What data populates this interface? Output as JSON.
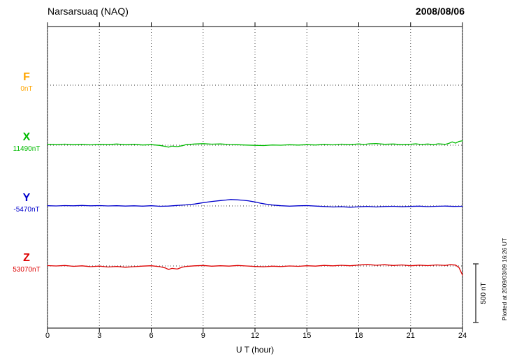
{
  "header": {
    "station": "Narsarsuaq (NAQ)",
    "date": "2008/08/06"
  },
  "footer": {
    "plotted_note": "Plotted at 2009/03/09 16:26 UT"
  },
  "chart_data": {
    "type": "line",
    "title": "Narsarsuaq (NAQ)",
    "date": "2008/08/06",
    "xlabel": "U T (hour)",
    "x_range": [
      0,
      24
    ],
    "x_ticks": [
      0,
      3,
      6,
      9,
      12,
      15,
      18,
      21,
      24
    ],
    "grid": "dotted",
    "scale": {
      "label": "500 nT",
      "nT": 500
    },
    "series": [
      {
        "name": "F",
        "color": "#ffa500",
        "baseline_label": "0nT",
        "baseline_nT": 0,
        "points": []
      },
      {
        "name": "X",
        "color": "#00bb00",
        "baseline_label": "11490nT",
        "baseline_nT": 11490,
        "points": [
          [
            0,
            8
          ],
          [
            0.5,
            5
          ],
          [
            1,
            9
          ],
          [
            1.5,
            4
          ],
          [
            2,
            7
          ],
          [
            2.5,
            3
          ],
          [
            3,
            8
          ],
          [
            3.5,
            5
          ],
          [
            4,
            10
          ],
          [
            4.5,
            4
          ],
          [
            5,
            8
          ],
          [
            5.5,
            2
          ],
          [
            6,
            5
          ],
          [
            6.5,
            -2
          ],
          [
            6.8,
            -10
          ],
          [
            7,
            -16
          ],
          [
            7.2,
            -8
          ],
          [
            7.5,
            -12
          ],
          [
            7.8,
            -4
          ],
          [
            8,
            4
          ],
          [
            8.5,
            10
          ],
          [
            9,
            13
          ],
          [
            9.5,
            9
          ],
          [
            10,
            11
          ],
          [
            10.5,
            6
          ],
          [
            11,
            4
          ],
          [
            11.5,
            1
          ],
          [
            12,
            -1
          ],
          [
            12.5,
            -3
          ],
          [
            13,
            2
          ],
          [
            13.5,
            0
          ],
          [
            14,
            4
          ],
          [
            14.5,
            1
          ],
          [
            15,
            5
          ],
          [
            15.5,
            2
          ],
          [
            16,
            7
          ],
          [
            16.5,
            3
          ],
          [
            17,
            9
          ],
          [
            17.5,
            5
          ],
          [
            18,
            11
          ],
          [
            18.3,
            6
          ],
          [
            18.6,
            12
          ],
          [
            19,
            14
          ],
          [
            19.5,
            8
          ],
          [
            20,
            10
          ],
          [
            20.5,
            5
          ],
          [
            21,
            8
          ],
          [
            21.3,
            12
          ],
          [
            21.6,
            6
          ],
          [
            22,
            10
          ],
          [
            22.3,
            4
          ],
          [
            22.6,
            12
          ],
          [
            23,
            7
          ],
          [
            23.2,
            15
          ],
          [
            23.4,
            28
          ],
          [
            23.6,
            18
          ],
          [
            23.8,
            32
          ],
          [
            24,
            38
          ]
        ]
      },
      {
        "name": "Y",
        "color": "#0000cc",
        "baseline_label": "-5470nT",
        "baseline_nT": -5470,
        "points": [
          [
            0,
            2
          ],
          [
            0.5,
            0
          ],
          [
            1,
            3
          ],
          [
            1.5,
            1
          ],
          [
            2,
            4
          ],
          [
            2.5,
            1
          ],
          [
            3,
            3
          ],
          [
            3.5,
            0
          ],
          [
            4,
            2
          ],
          [
            4.5,
            -1
          ],
          [
            5,
            1
          ],
          [
            5.5,
            -2
          ],
          [
            6,
            2
          ],
          [
            6.5,
            -3
          ],
          [
            7,
            -1
          ],
          [
            7.5,
            4
          ],
          [
            8,
            9
          ],
          [
            8.5,
            16
          ],
          [
            9,
            28
          ],
          [
            9.5,
            38
          ],
          [
            10,
            46
          ],
          [
            10.3,
            50
          ],
          [
            10.6,
            55
          ],
          [
            11,
            52
          ],
          [
            11.3,
            48
          ],
          [
            11.6,
            44
          ],
          [
            12,
            34
          ],
          [
            12.3,
            24
          ],
          [
            12.6,
            16
          ],
          [
            13,
            8
          ],
          [
            13.5,
            2
          ],
          [
            14,
            -2
          ],
          [
            14.5,
            1
          ],
          [
            15,
            3
          ],
          [
            15.5,
            -1
          ],
          [
            16,
            -5
          ],
          [
            16.5,
            -9
          ],
          [
            17,
            -7
          ],
          [
            17.5,
            -11
          ],
          [
            18,
            -8
          ],
          [
            18.5,
            -4
          ],
          [
            19,
            -9
          ],
          [
            19.5,
            -5
          ],
          [
            20,
            -3
          ],
          [
            20.5,
            -7
          ],
          [
            21,
            -4
          ],
          [
            21.5,
            -2
          ],
          [
            22,
            -6
          ],
          [
            22.5,
            -3
          ],
          [
            23,
            -1
          ],
          [
            23.5,
            -4
          ],
          [
            24,
            -3
          ]
        ]
      },
      {
        "name": "Z",
        "color": "#dd0000",
        "baseline_label": "53070nT",
        "baseline_nT": 53070,
        "points": [
          [
            0,
            3
          ],
          [
            0.5,
            0
          ],
          [
            1,
            4
          ],
          [
            1.5,
            -3
          ],
          [
            2,
            1
          ],
          [
            2.5,
            -6
          ],
          [
            3,
            -1
          ],
          [
            3.5,
            -9
          ],
          [
            4,
            -4
          ],
          [
            4.5,
            -11
          ],
          [
            5,
            -6
          ],
          [
            5.5,
            -1
          ],
          [
            6,
            2
          ],
          [
            6.5,
            -6
          ],
          [
            6.8,
            -16
          ],
          [
            7,
            -30
          ],
          [
            7.2,
            -20
          ],
          [
            7.5,
            -26
          ],
          [
            7.8,
            -10
          ],
          [
            8,
            -4
          ],
          [
            8.5,
            1
          ],
          [
            9,
            4
          ],
          [
            9.5,
            -2
          ],
          [
            10,
            2
          ],
          [
            10.5,
            -1
          ],
          [
            11,
            4
          ],
          [
            11.5,
            0
          ],
          [
            12,
            -4
          ],
          [
            12.5,
            -7
          ],
          [
            13,
            -2
          ],
          [
            13.5,
            -5
          ],
          [
            14,
            0
          ],
          [
            14.5,
            -3
          ],
          [
            15,
            2
          ],
          [
            15.5,
            -1
          ],
          [
            16,
            5
          ],
          [
            16.5,
            1
          ],
          [
            17,
            6
          ],
          [
            17.5,
            2
          ],
          [
            18,
            8
          ],
          [
            18.5,
            13
          ],
          [
            19,
            6
          ],
          [
            19.5,
            11
          ],
          [
            20,
            4
          ],
          [
            20.5,
            9
          ],
          [
            21,
            2
          ],
          [
            21.5,
            7
          ],
          [
            22,
            3
          ],
          [
            22.5,
            9
          ],
          [
            23,
            5
          ],
          [
            23.3,
            11
          ],
          [
            23.6,
            8
          ],
          [
            23.8,
            -15
          ],
          [
            24,
            -78
          ]
        ]
      }
    ]
  }
}
